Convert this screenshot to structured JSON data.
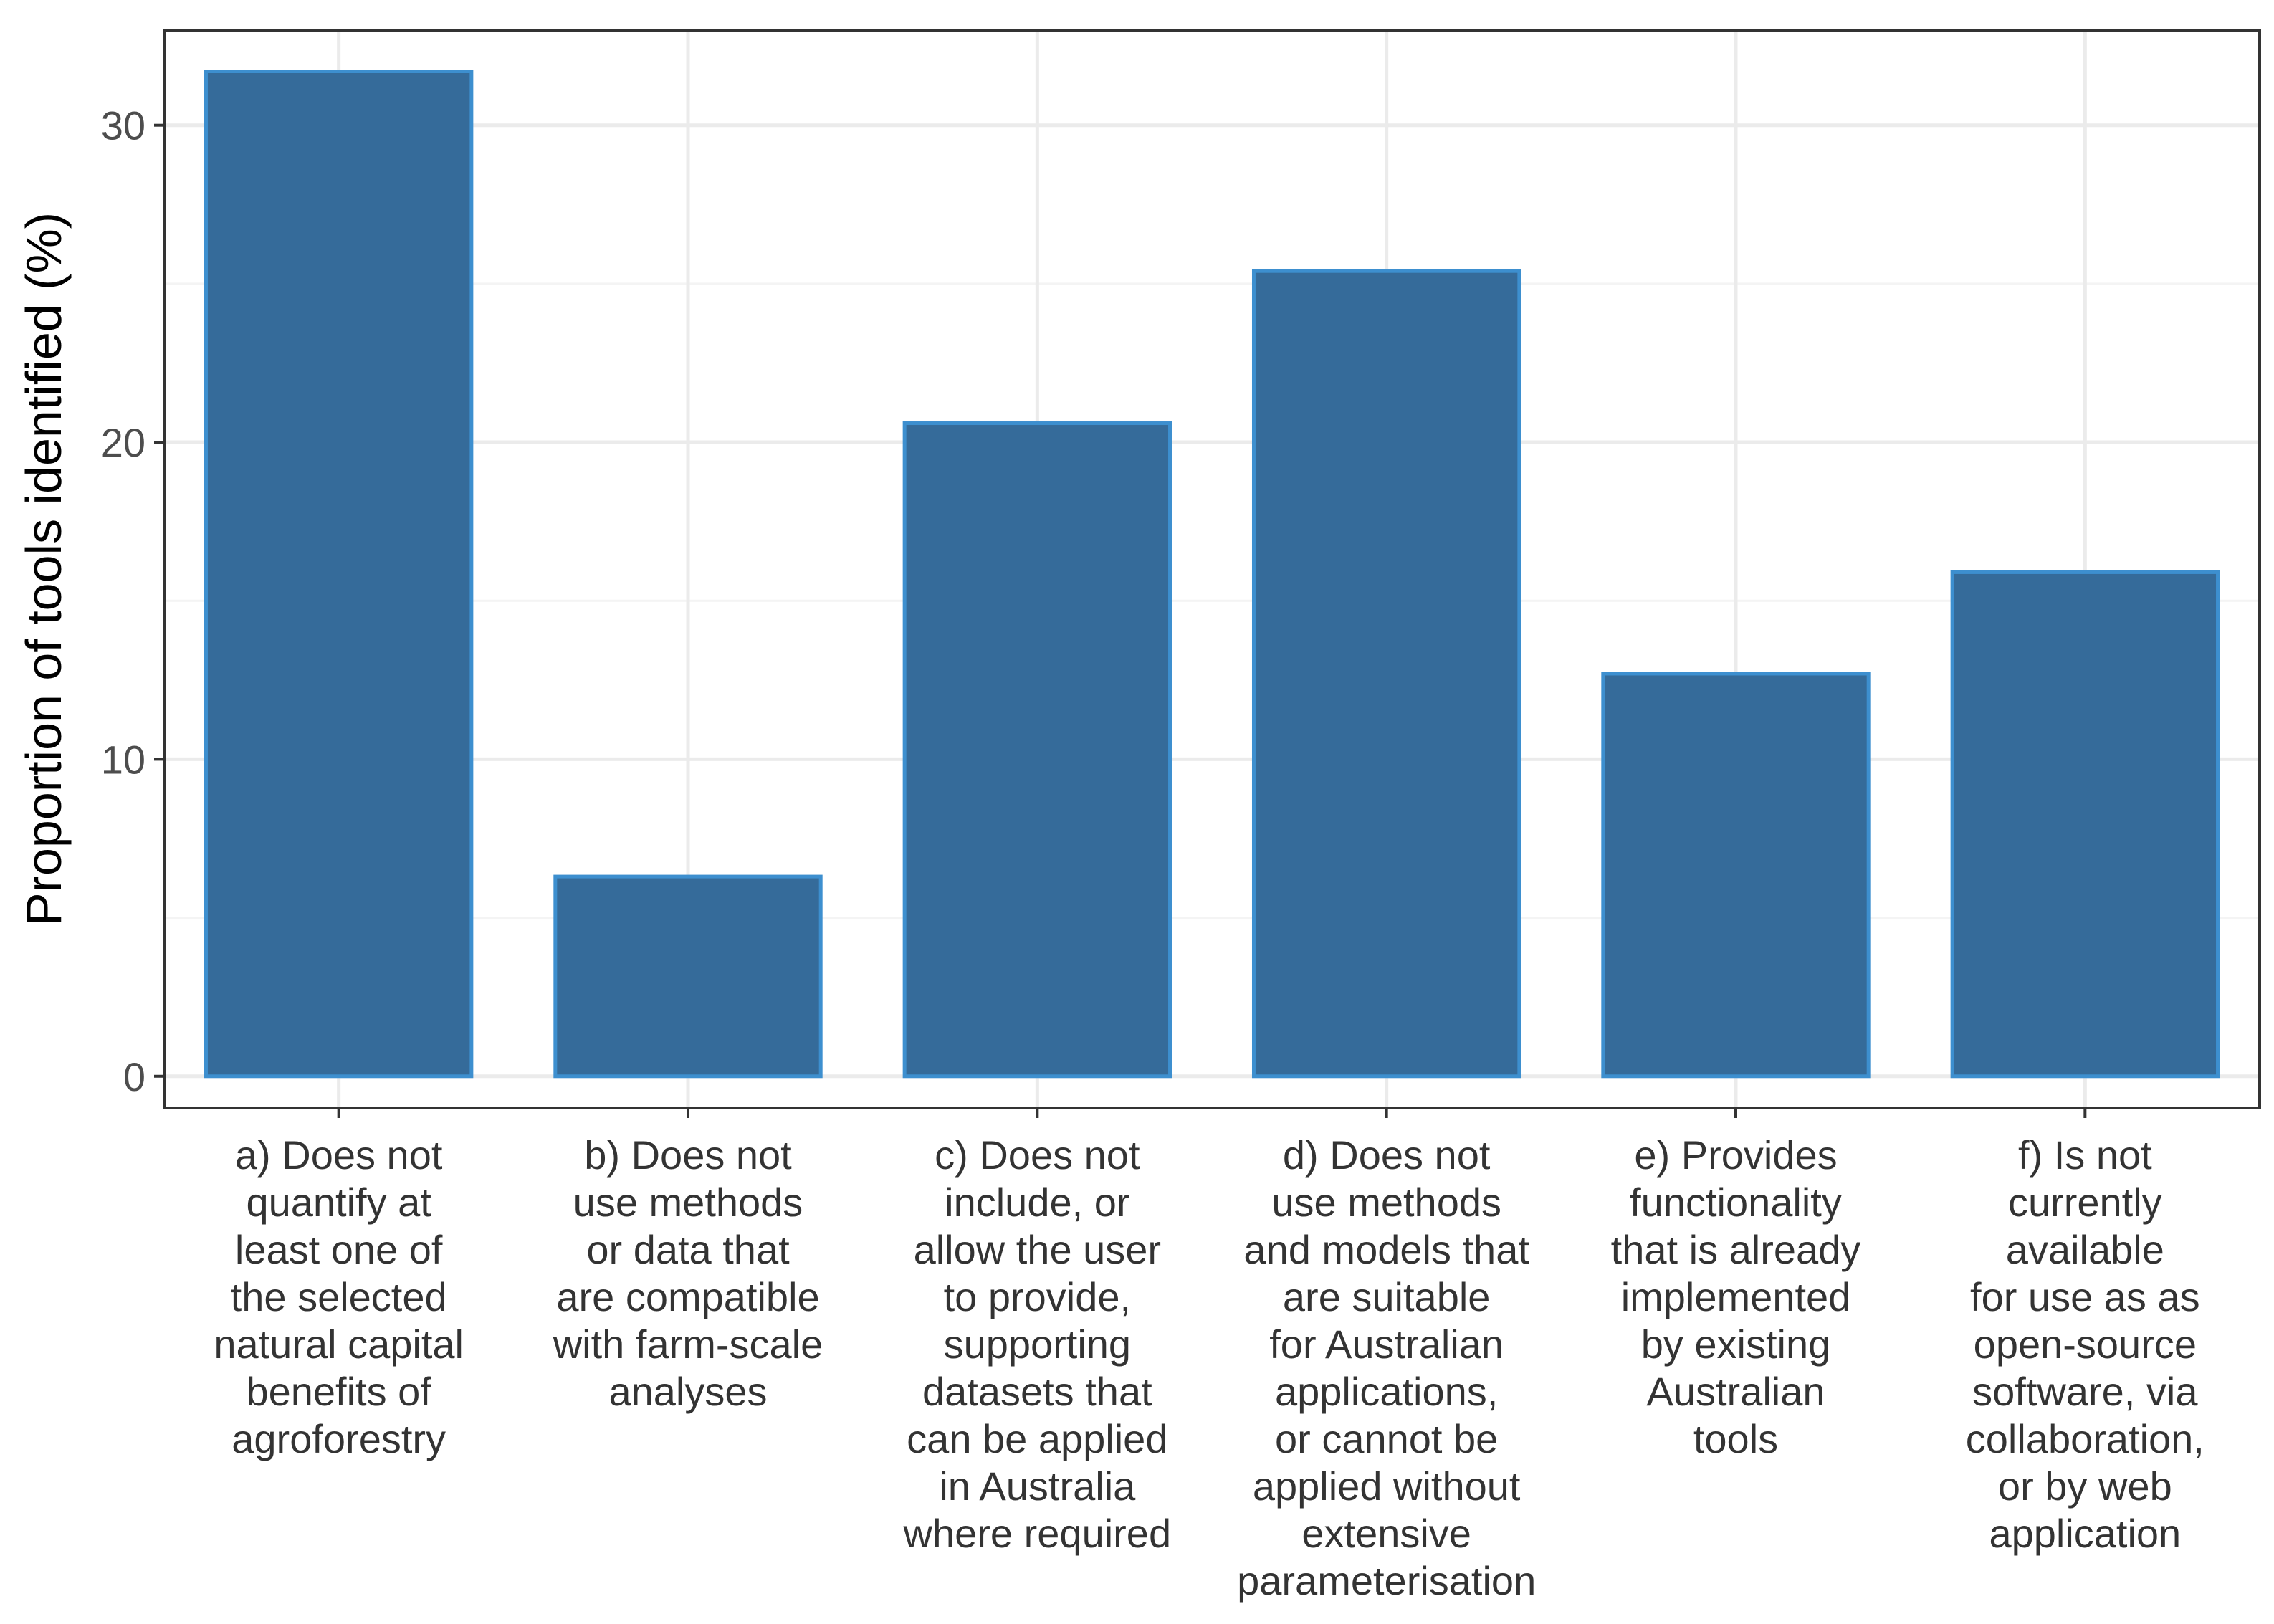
{
  "chart_data": {
    "type": "bar",
    "title": "",
    "xlabel": "",
    "ylabel": "Proportion of tools identified (%)",
    "ylim": [
      -1,
      33
    ],
    "yticks": [
      0,
      10,
      20,
      30
    ],
    "grid": true,
    "categories": [
      [
        "a) Does not",
        "quantify at",
        "least one of",
        "the selected",
        "natural capital",
        "benefits of",
        "agroforestry"
      ],
      [
        "b) Does not",
        "use methods",
        "or data that",
        "are compatible",
        "with farm-scale",
        "analyses"
      ],
      [
        "c) Does not",
        "include, or",
        "allow the user",
        "to provide,",
        "supporting",
        "datasets that",
        "can be applied",
        "in Australia",
        "where required"
      ],
      [
        "d) Does not",
        "use methods",
        "and models that",
        "are suitable",
        "for Australian",
        "applications,",
        "or cannot be",
        "applied without",
        "extensive",
        "parameterisation"
      ],
      [
        "e) Provides",
        "functionality",
        "that is already",
        "implemented",
        "by existing",
        "Australian",
        "tools"
      ],
      [
        "f) Is not",
        "currently",
        "available",
        "for use as as",
        "open-source",
        "software, via",
        "collaboration,",
        "or by web",
        "application"
      ]
    ],
    "values": [
      31.7,
      6.3,
      20.6,
      25.4,
      12.7,
      15.9
    ],
    "colors": {
      "bar_fill": "#356b9a",
      "bar_stroke": "#3d8fcf",
      "grid_major": "#ebebeb",
      "grid_minor": "#f4f4f4",
      "panel_border": "#333333"
    }
  }
}
